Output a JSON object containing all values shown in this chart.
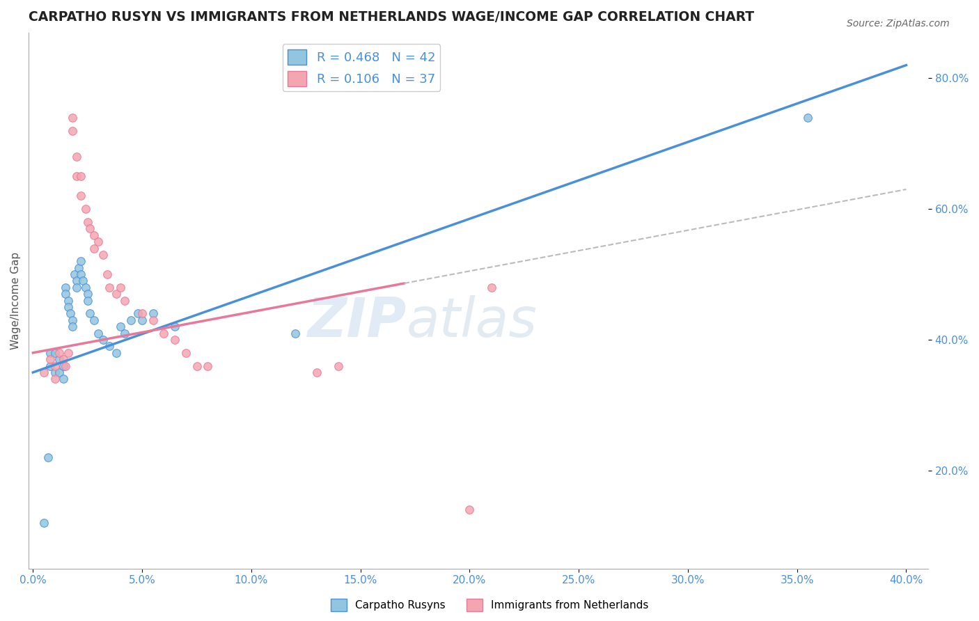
{
  "title": "CARPATHO RUSYN VS IMMIGRANTS FROM NETHERLANDS WAGE/INCOME GAP CORRELATION CHART",
  "source": "Source: ZipAtlas.com",
  "xlabel_ticks": [
    "0.0%",
    "5.0%",
    "10.0%",
    "15.0%",
    "20.0%",
    "25.0%",
    "30.0%",
    "35.0%",
    "40.0%"
  ],
  "xlabel_vals": [
    0.0,
    0.05,
    0.1,
    0.15,
    0.2,
    0.25,
    0.3,
    0.35,
    0.4
  ],
  "ylabel": "Wage/Income Gap",
  "ylabel_ticks": [
    "20.0%",
    "40.0%",
    "60.0%",
    "80.0%"
  ],
  "ylabel_vals": [
    0.2,
    0.4,
    0.6,
    0.8
  ],
  "ylim": [
    0.05,
    0.87
  ],
  "xlim": [
    -0.002,
    0.41
  ],
  "blue_color": "#92C5DE",
  "pink_color": "#F4A6B0",
  "blue_line_color": "#4A90D9",
  "pink_line_color": "#E8789A",
  "pink_dash_color": "#BBBBBB",
  "blue_R": 0.468,
  "blue_N": 42,
  "pink_R": 0.106,
  "pink_N": 37,
  "watermark_zip": "ZIP",
  "watermark_atlas": "atlas",
  "legend_label_blue": "Carpatho Rusyns",
  "legend_label_pink": "Immigrants from Netherlands",
  "blue_scatter_x": [
    0.005,
    0.008,
    0.008,
    0.01,
    0.01,
    0.012,
    0.012,
    0.014,
    0.014,
    0.015,
    0.015,
    0.016,
    0.016,
    0.017,
    0.018,
    0.018,
    0.019,
    0.02,
    0.02,
    0.021,
    0.022,
    0.022,
    0.023,
    0.024,
    0.025,
    0.025,
    0.026,
    0.028,
    0.03,
    0.032,
    0.035,
    0.038,
    0.04,
    0.042,
    0.045,
    0.048,
    0.05,
    0.055,
    0.065,
    0.12,
    0.355,
    0.007
  ],
  "blue_scatter_y": [
    0.12,
    0.38,
    0.36,
    0.38,
    0.35,
    0.37,
    0.35,
    0.36,
    0.34,
    0.48,
    0.47,
    0.46,
    0.45,
    0.44,
    0.43,
    0.42,
    0.5,
    0.49,
    0.48,
    0.51,
    0.52,
    0.5,
    0.49,
    0.48,
    0.47,
    0.46,
    0.44,
    0.43,
    0.41,
    0.4,
    0.39,
    0.38,
    0.42,
    0.41,
    0.43,
    0.44,
    0.43,
    0.44,
    0.42,
    0.41,
    0.74,
    0.22
  ],
  "pink_scatter_x": [
    0.005,
    0.008,
    0.01,
    0.01,
    0.012,
    0.014,
    0.015,
    0.016,
    0.018,
    0.018,
    0.02,
    0.02,
    0.022,
    0.022,
    0.024,
    0.025,
    0.026,
    0.028,
    0.028,
    0.03,
    0.032,
    0.034,
    0.035,
    0.038,
    0.04,
    0.042,
    0.05,
    0.055,
    0.06,
    0.065,
    0.07,
    0.075,
    0.08,
    0.13,
    0.2,
    0.21,
    0.14
  ],
  "pink_scatter_y": [
    0.35,
    0.37,
    0.36,
    0.34,
    0.38,
    0.37,
    0.36,
    0.38,
    0.72,
    0.74,
    0.68,
    0.65,
    0.65,
    0.62,
    0.6,
    0.58,
    0.57,
    0.56,
    0.54,
    0.55,
    0.53,
    0.5,
    0.48,
    0.47,
    0.48,
    0.46,
    0.44,
    0.43,
    0.41,
    0.4,
    0.38,
    0.36,
    0.36,
    0.35,
    0.14,
    0.48,
    0.36
  ],
  "grid_color": "#DDDDDD",
  "bg_color": "#FFFFFF",
  "title_color": "#222222",
  "tick_label_color": "#4A90D9"
}
